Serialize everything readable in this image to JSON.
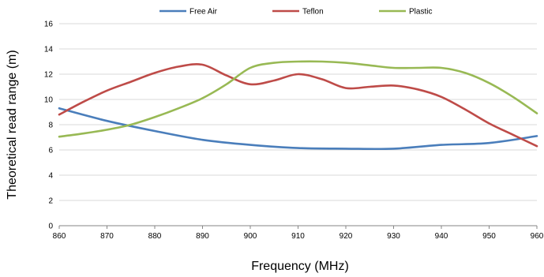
{
  "chart_data": {
    "type": "line",
    "title": "",
    "xlabel": "Frequency (MHz)",
    "ylabel": "Theoretical read range (m)",
    "xlim": [
      860,
      960
    ],
    "ylim": [
      0,
      16
    ],
    "x_ticks": [
      860,
      870,
      880,
      890,
      900,
      910,
      920,
      930,
      940,
      950,
      960
    ],
    "y_ticks": [
      0,
      2,
      4,
      6,
      8,
      10,
      12,
      14,
      16
    ],
    "grid": "horizontal",
    "legend_position": "top",
    "series": [
      {
        "name": "Free Air",
        "color": "#4a7ebb",
        "x": [
          860,
          870,
          880,
          890,
          900,
          910,
          920,
          930,
          940,
          950,
          960
        ],
        "values": [
          9.3,
          8.3,
          7.5,
          6.8,
          6.4,
          6.15,
          6.1,
          6.1,
          6.4,
          6.55,
          7.1
        ]
      },
      {
        "name": "Teflon",
        "color": "#be4b48",
        "x": [
          860,
          865,
          870,
          875,
          880,
          885,
          890,
          895,
          900,
          905,
          910,
          915,
          920,
          925,
          930,
          935,
          940,
          945,
          950,
          955,
          960
        ],
        "values": [
          8.8,
          9.8,
          10.7,
          11.4,
          12.1,
          12.6,
          12.75,
          11.9,
          11.2,
          11.5,
          12.0,
          11.6,
          10.9,
          11.0,
          11.1,
          10.8,
          10.2,
          9.2,
          8.1,
          7.2,
          6.3
        ]
      },
      {
        "name": "Plastic",
        "color": "#98b954",
        "x": [
          860,
          865,
          870,
          875,
          880,
          885,
          890,
          895,
          900,
          905,
          910,
          915,
          920,
          925,
          930,
          935,
          940,
          945,
          950,
          955,
          960
        ],
        "values": [
          7.05,
          7.3,
          7.6,
          8.0,
          8.6,
          9.3,
          10.1,
          11.2,
          12.5,
          12.9,
          13.0,
          13.0,
          12.9,
          12.7,
          12.5,
          12.5,
          12.5,
          12.1,
          11.3,
          10.2,
          8.9
        ]
      }
    ]
  }
}
